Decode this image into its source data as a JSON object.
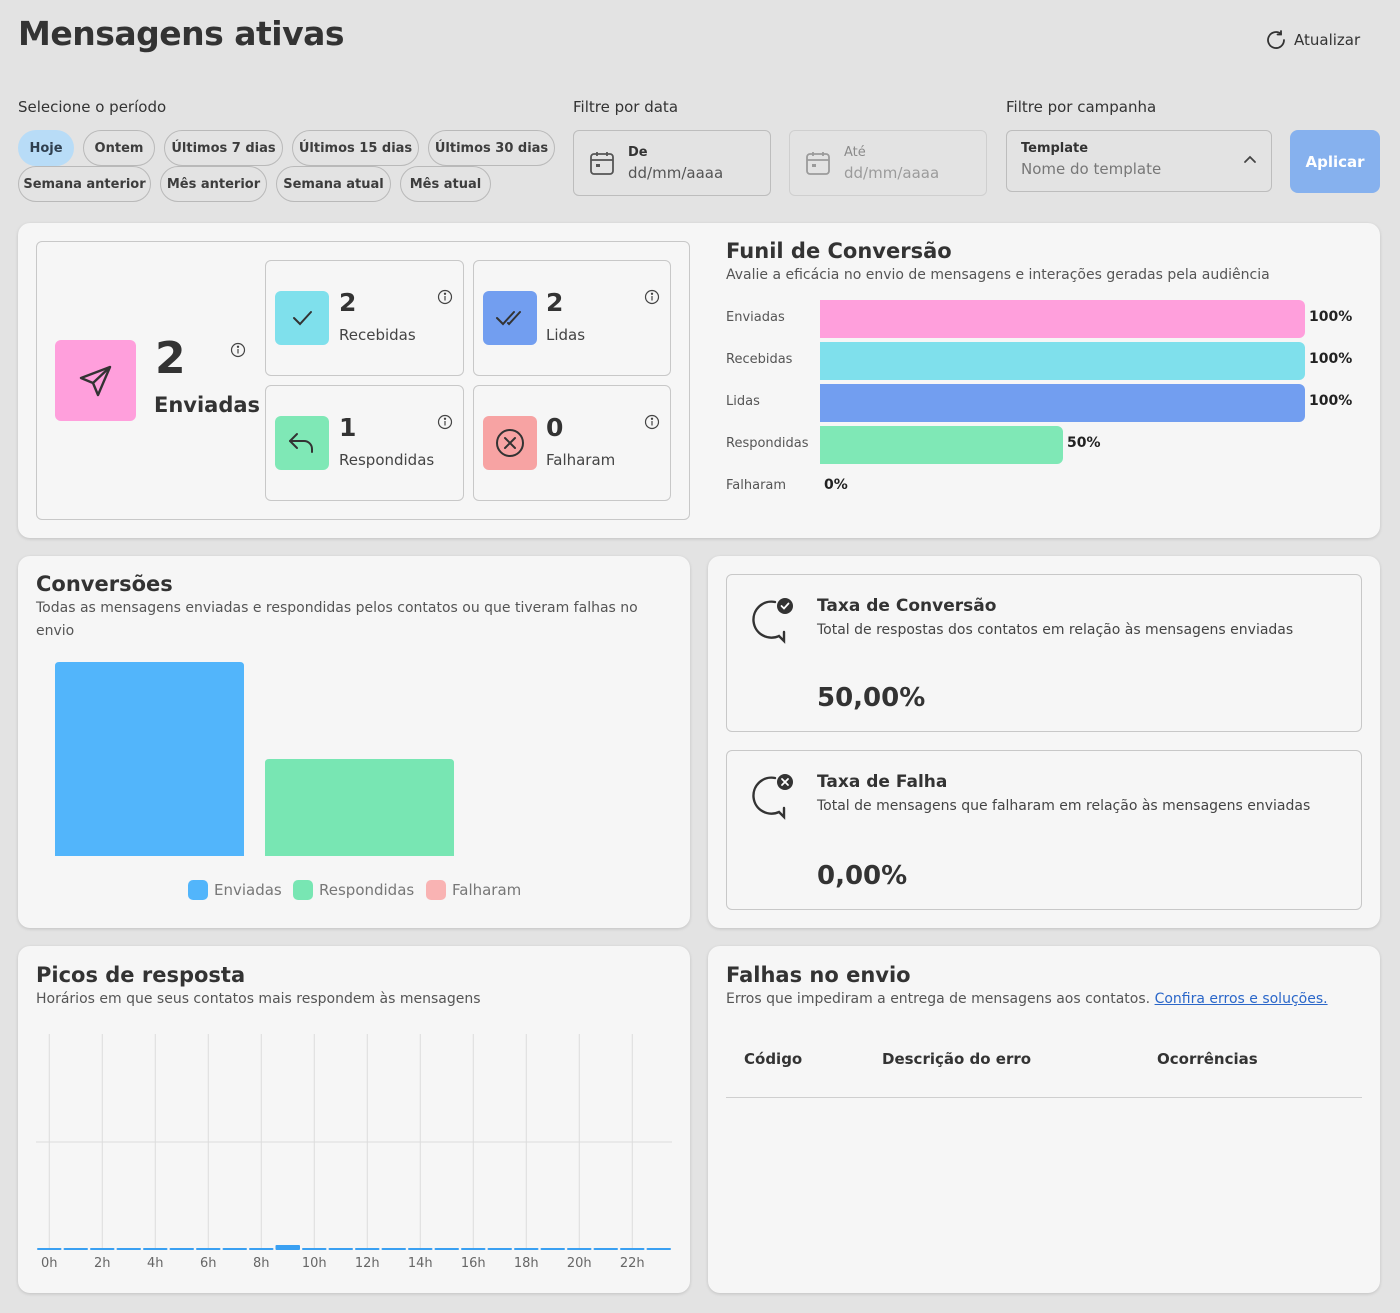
{
  "header": {
    "title": "Mensagens ativas",
    "refresh_label": "Atualizar"
  },
  "period": {
    "label": "Selecione o período",
    "chips": [
      "Hoje",
      "Ontem",
      "Últimos 7 dias",
      "Últimos 15 dias",
      "Últimos 30 dias",
      "Semana anterior",
      "Mês anterior",
      "Semana atual",
      "Mês atual"
    ],
    "active": "Hoje"
  },
  "date_filter": {
    "label": "Filtre por data",
    "from": {
      "label": "De",
      "placeholder": "dd/mm/aaaa"
    },
    "to": {
      "label": "Até",
      "placeholder": "dd/mm/aaaa"
    }
  },
  "campaign_filter": {
    "label": "Filtre por campanha",
    "select_label": "Template",
    "placeholder": "Nome do template"
  },
  "apply_label": "Aplicar",
  "stats": {
    "enviadas": {
      "value": "2",
      "label": "Enviadas",
      "color": "#ff9fdc"
    },
    "recebidas": {
      "value": "2",
      "label": "Recebidas",
      "color": "#7fe0ec"
    },
    "lidas": {
      "value": "2",
      "label": "Lidas",
      "color": "#729ef0"
    },
    "respondidas": {
      "value": "1",
      "label": "Respondidas",
      "color": "#7fe8b6"
    },
    "falharam": {
      "value": "0",
      "label": "Falharam",
      "color": "#f7a3a3"
    }
  },
  "funnel": {
    "title": "Funil de Conversão",
    "subtitle": "Avalie a eficácia no envio de mensagens e interações geradas pela audiência",
    "rows": [
      {
        "label": "Enviadas",
        "percent": 100,
        "percent_label": "100%",
        "color": "#ff9fdc"
      },
      {
        "label": "Recebidas",
        "percent": 100,
        "percent_label": "100%",
        "color": "#7fe0ec"
      },
      {
        "label": "Lidas",
        "percent": 100,
        "percent_label": "100%",
        "color": "#729ef0"
      },
      {
        "label": "Respondidas",
        "percent": 50,
        "percent_label": "50%",
        "color": "#7fe8b6"
      },
      {
        "label": "Falharam",
        "percent": 0,
        "percent_label": "0%",
        "color": "#f7a3a3"
      }
    ]
  },
  "conversions": {
    "title": "Conversões",
    "subtitle": "Todas as mensagens enviadas e respondidas pelos contatos ou que tiveram falhas no envio",
    "chart_data": {
      "type": "bar",
      "series": [
        {
          "name": "Enviadas",
          "values": [
            2
          ],
          "color": "#52b5fb"
        },
        {
          "name": "Respondidas",
          "values": [
            1
          ],
          "color": "#78e6b3"
        },
        {
          "name": "Falharam",
          "values": [
            0
          ],
          "color": "#f9b3b3"
        }
      ],
      "ylim": [
        0,
        2
      ]
    }
  },
  "rates": {
    "conversion": {
      "title": "Taxa de Conversão",
      "subtitle": "Total de respostas dos contatos em relação às mensagens enviadas",
      "value": "50,00%"
    },
    "failure": {
      "title": "Taxa de Falha",
      "subtitle": "Total de mensagens que falharam em relação às mensagens enviadas",
      "value": "0,00%"
    }
  },
  "peaks": {
    "title": "Picos de resposta",
    "subtitle": "Horários em que seus contatos mais respondem às mensagens",
    "chart_data": {
      "type": "bar",
      "categories": [
        "0h",
        "1h",
        "2h",
        "3h",
        "4h",
        "5h",
        "6h",
        "7h",
        "8h",
        "9h",
        "10h",
        "11h",
        "12h",
        "13h",
        "14h",
        "15h",
        "16h",
        "17h",
        "18h",
        "19h",
        "20h",
        "21h",
        "22h",
        "23h"
      ],
      "values": [
        0,
        0,
        0,
        0,
        0,
        0,
        0,
        0,
        0,
        1,
        0,
        0,
        0,
        0,
        0,
        0,
        0,
        0,
        0,
        0,
        0,
        0,
        0,
        0
      ],
      "tick_labels": [
        "0h",
        "2h",
        "4h",
        "6h",
        "8h",
        "10h",
        "12h",
        "14h",
        "16h",
        "18h",
        "20h",
        "22h"
      ],
      "ylim": [
        0,
        2
      ],
      "grid": true
    }
  },
  "failures": {
    "title": "Falhas no envio",
    "subtitle": "Erros que impediram a entrega de mensagens aos contatos.",
    "link": "Confira erros e soluções.",
    "columns": [
      "Código",
      "Descrição do erro",
      "Ocorrências"
    ],
    "rows": []
  }
}
